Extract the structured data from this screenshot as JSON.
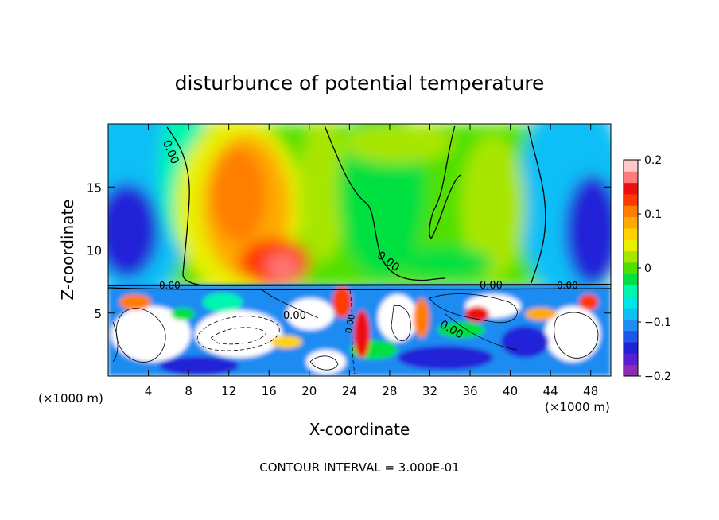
{
  "chart_data": {
    "type": "heatmap",
    "title": "disturbunce of potential temperature",
    "xlabel": "X-coordinate",
    "ylabel": "Z-coordinate",
    "x_unit_left": "(×1000 m)",
    "x_unit_right": "(×1000 m)",
    "xlim": [
      0,
      50
    ],
    "ylim": [
      0,
      20
    ],
    "xticks": [
      4,
      8,
      12,
      16,
      20,
      24,
      28,
      32,
      36,
      40,
      44,
      48
    ],
    "yticks": [
      5,
      10,
      15
    ],
    "colorbar": {
      "range": [
        -0.2,
        0.2
      ],
      "ticks": [
        0.2,
        0.1,
        0,
        -0.1,
        -0.2
      ],
      "tick_labels": [
        "0.2",
        "0.1",
        "0",
        "−0.1",
        "−0.2"
      ],
      "colors": [
        "#8e2bb5",
        "#5a1fd0",
        "#2222d8",
        "#1f55e8",
        "#1e8cf2",
        "#10bff6",
        "#00e5e5",
        "#00f5b0",
        "#00e040",
        "#4fe000",
        "#a8e600",
        "#e8f000",
        "#ffd200",
        "#ffaa00",
        "#ff7e00",
        "#ff3a00",
        "#ee1010",
        "#ff7a7a",
        "#ffc8c8"
      ]
    },
    "contour_labels": [
      "0.00",
      "0.00",
      "0.00",
      "0.00",
      "0.00",
      "0.00",
      "0.00",
      "0.00"
    ],
    "grid": false
  },
  "footer": {
    "contour_interval": "CONTOUR INTERVAL = 3.000E-01"
  }
}
